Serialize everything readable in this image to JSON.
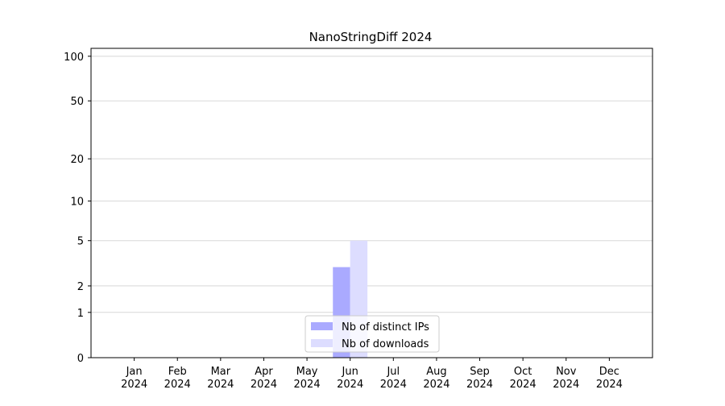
{
  "chart_data": {
    "type": "bar",
    "title": "NanoStringDiff 2024",
    "categories": [
      "Jan\n2024",
      "Feb\n2024",
      "Mar\n2024",
      "Apr\n2024",
      "May\n2024",
      "Jun\n2024",
      "Jul\n2024",
      "Aug\n2024",
      "Sep\n2024",
      "Oct\n2024",
      "Nov\n2024",
      "Dec\n2024"
    ],
    "series": [
      {
        "name": "Nb of distinct IPs",
        "color": "#aaaaff",
        "values": [
          0,
          0,
          0,
          0,
          0,
          3,
          0,
          0,
          0,
          0,
          0,
          0
        ]
      },
      {
        "name": "Nb of downloads",
        "color": "#ddddff",
        "values": [
          0,
          0,
          0,
          0,
          0,
          5,
          0,
          0,
          0,
          0,
          0,
          0
        ]
      }
    ],
    "yscale": "log1p",
    "ylim": [
      0,
      113
    ],
    "yticks": [
      0,
      1,
      2,
      5,
      10,
      20,
      50,
      100
    ],
    "grid": true,
    "legend": "lower center"
  }
}
